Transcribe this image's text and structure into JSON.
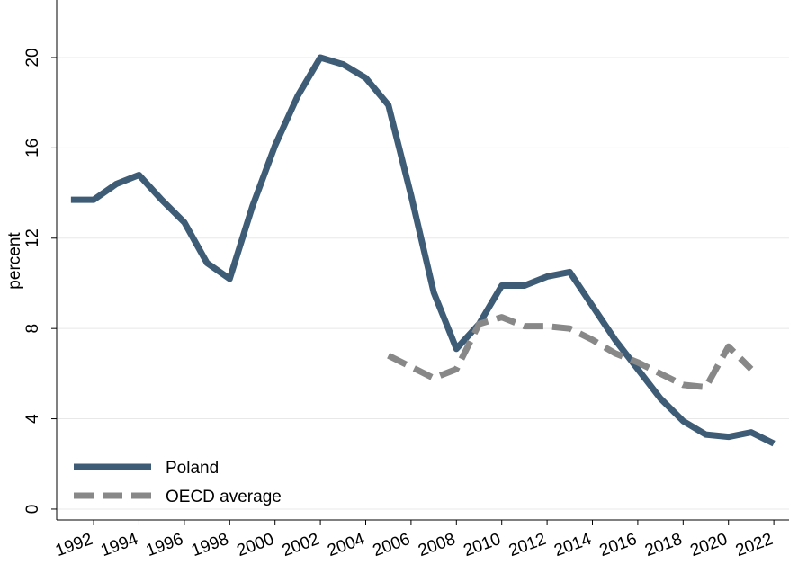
{
  "chart_data": {
    "type": "line",
    "y_label": "percent",
    "x": [
      1991,
      1992,
      1993,
      1994,
      1995,
      1996,
      1997,
      1998,
      1999,
      2000,
      2001,
      2002,
      2003,
      2004,
      2005,
      2006,
      2007,
      2008,
      2009,
      2010,
      2011,
      2012,
      2013,
      2014,
      2015,
      2016,
      2017,
      2018,
      2019,
      2020,
      2021,
      2022
    ],
    "series": [
      {
        "name": "Poland",
        "color": "#3e5c76",
        "dash": false,
        "values": [
          13.7,
          13.7,
          14.4,
          14.8,
          13.7,
          12.7,
          10.9,
          10.2,
          13.4,
          16.1,
          18.3,
          20.0,
          19.7,
          19.1,
          17.9,
          13.9,
          9.6,
          7.1,
          8.2,
          9.9,
          9.9,
          10.3,
          10.5,
          9.0,
          7.5,
          6.2,
          4.9,
          3.9,
          3.3,
          3.2,
          3.4,
          2.9
        ]
      },
      {
        "name": "OECD average",
        "color": "#888888",
        "dash": true,
        "values": [
          null,
          null,
          null,
          null,
          null,
          null,
          null,
          null,
          null,
          null,
          null,
          null,
          null,
          null,
          6.8,
          6.3,
          5.8,
          6.2,
          8.2,
          8.5,
          8.1,
          8.1,
          8.0,
          7.5,
          6.9,
          6.5,
          6.0,
          5.5,
          5.4,
          7.2,
          6.2,
          null
        ]
      }
    ],
    "xlim": [
      1990.37,
      2022.67
    ],
    "xticks": [
      1992,
      1994,
      1996,
      1998,
      2000,
      2002,
      2004,
      2006,
      2008,
      2010,
      2012,
      2014,
      2016,
      2018,
      2020,
      2022
    ],
    "ylim": [
      -0.48,
      22.55
    ],
    "yticks": [
      0,
      4,
      8,
      12,
      16,
      20
    ],
    "grid": true,
    "legend": "bottom-left"
  }
}
